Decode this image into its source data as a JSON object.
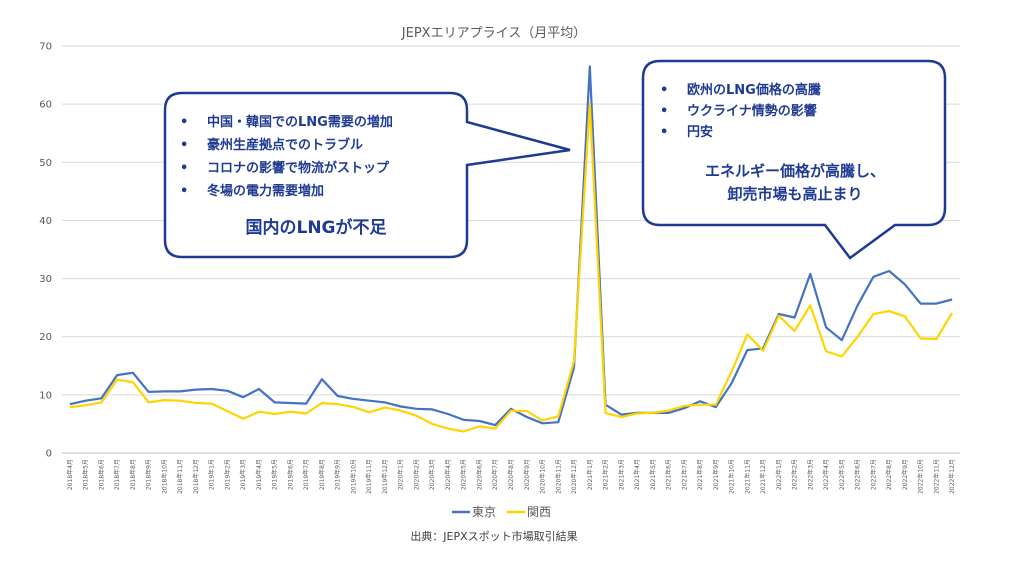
{
  "chart_data": {
    "type": "line",
    "title": "JEPXエリアプライス（月平均）",
    "ylim": [
      0,
      70
    ],
    "yticks": [
      0,
      10,
      20,
      30,
      40,
      50,
      60,
      70
    ],
    "grid": true,
    "legend_position": "bottom",
    "categories": [
      "2018年4月",
      "2018年5月",
      "2018年6月",
      "2018年7月",
      "2018年8月",
      "2018年9月",
      "2018年10月",
      "2018年11月",
      "2018年12月",
      "2019年1月",
      "2019年2月",
      "2019年3月",
      "2019年4月",
      "2019年5月",
      "2019年6月",
      "2019年7月",
      "2019年8月",
      "2019年9月",
      "2019年10月",
      "2019年11月",
      "2019年12月",
      "2020年1月",
      "2020年2月",
      "2020年3月",
      "2020年4月",
      "2020年5月",
      "2020年6月",
      "2020年7月",
      "2020年8月",
      "2020年9月",
      "2020年10月",
      "2020年11月",
      "2020年12月",
      "2021年1月",
      "2021年2月",
      "2021年3月",
      "2021年4月",
      "2021年5月",
      "2021年6月",
      "2021年7月",
      "2021年8月",
      "2021年9月",
      "2021年10月",
      "2021年11月",
      "2021年12月",
      "2022年1月",
      "2022年2月",
      "2022年3月",
      "2022年4月",
      "2022年5月",
      "2022年6月",
      "2022年7月",
      "2022年8月",
      "2022年9月",
      "2022年10月",
      "2022年11月",
      "2022年12月"
    ],
    "series": [
      {
        "name": "東京",
        "color": "#4472c4",
        "values": [
          8.4,
          9.0,
          9.4,
          13.4,
          13.8,
          10.5,
          10.6,
          10.6,
          10.9,
          11.0,
          10.7,
          9.6,
          11.0,
          8.7,
          8.6,
          8.5,
          12.7,
          9.8,
          9.3,
          9.0,
          8.7,
          8.0,
          7.6,
          7.5,
          6.7,
          5.7,
          5.5,
          4.8,
          7.6,
          6.2,
          5.1,
          5.3,
          14.7,
          66.5,
          8.3,
          6.6,
          6.9,
          6.9,
          6.9,
          7.7,
          8.9,
          7.9,
          12.0,
          17.7,
          18.0,
          23.9,
          23.3,
          30.8,
          21.6,
          19.4,
          25.4,
          30.3,
          31.3,
          29.0,
          25.7,
          25.7,
          26.4
        ]
      },
      {
        "name": "関西",
        "color": "#ffd400",
        "values": [
          7.9,
          8.2,
          8.7,
          12.6,
          12.2,
          8.7,
          9.1,
          9.0,
          8.6,
          8.5,
          7.2,
          5.9,
          7.1,
          6.7,
          7.1,
          6.8,
          8.6,
          8.4,
          7.9,
          7.0,
          7.8,
          7.3,
          6.4,
          5.0,
          4.2,
          3.7,
          4.6,
          4.2,
          7.3,
          7.2,
          5.6,
          6.3,
          15.8,
          60.1,
          6.9,
          6.2,
          6.8,
          6.9,
          7.3,
          8.1,
          8.3,
          8.3,
          14.0,
          20.4,
          17.6,
          23.6,
          21.0,
          25.4,
          17.5,
          16.6,
          20.0,
          23.9,
          24.4,
          23.5,
          19.7,
          19.6,
          24.1
        ]
      }
    ]
  },
  "callout_left": {
    "bullets": [
      "中国・韓国でのLNG需要の増加",
      "豪州生産拠点でのトラブル",
      "コロナの影響で物流がストップ",
      "冬場の電力需要増加"
    ],
    "summary": "国内のLNGが不足"
  },
  "callout_right": {
    "bullets": [
      "欧州のLNG価格の高騰",
      "ウクライナ情勢の影響",
      "円安"
    ],
    "summary_line1": "エネルギー価格が高騰し、",
    "summary_line2": "卸売市場も高止まり"
  },
  "source": "出典：JEPXスポット市場取引結果",
  "colors": {
    "callout_border": "#1f3a93",
    "grid": "#d9d9d9"
  }
}
